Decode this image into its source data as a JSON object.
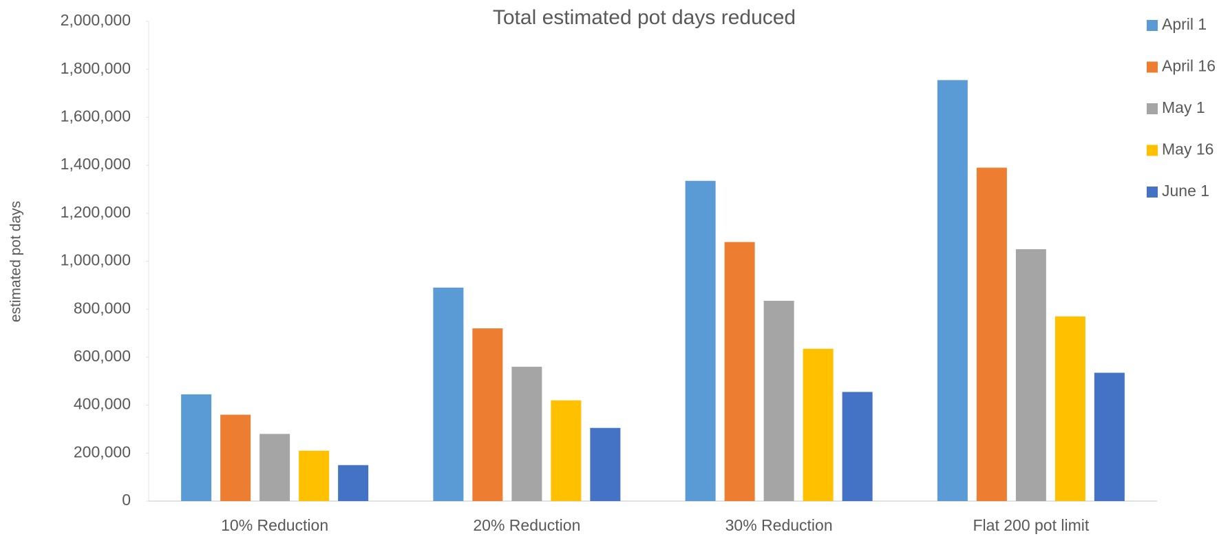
{
  "chart_data": {
    "type": "bar",
    "title": "Total estimated pot days reduced",
    "y_label": "estimated pot days",
    "categories": [
      "10% Reduction",
      "20% Reduction",
      "30% Reduction",
      "Flat 200 pot limit"
    ],
    "series": [
      {
        "name": "April 1",
        "color": "#5b9bd5",
        "values": [
          445000,
          890000,
          1335000,
          1755000
        ]
      },
      {
        "name": "April 16",
        "color": "#ed7d31",
        "values": [
          360000,
          720000,
          1080000,
          1390000
        ]
      },
      {
        "name": "May 1",
        "color": "#a5a5a5",
        "values": [
          280000,
          560000,
          835000,
          1050000
        ]
      },
      {
        "name": "May 16",
        "color": "#ffc000",
        "values": [
          210000,
          420000,
          635000,
          770000
        ]
      },
      {
        "name": "June 1",
        "color": "#4472c4",
        "values": [
          150000,
          305000,
          455000,
          535000
        ]
      }
    ],
    "ylim": [
      0,
      2000000
    ],
    "yticks": [
      0,
      {
        "value": 200000,
        "label": "200,000"
      },
      {
        "value": 400000,
        "label": "400,000"
      },
      {
        "value": 600000,
        "label": "600,000"
      },
      {
        "value": 800000,
        "label": "800,000"
      },
      {
        "value": 1000000,
        "label": "1,000,000"
      },
      {
        "value": 1200000,
        "label": "1,200,000"
      },
      {
        "value": 1400000,
        "label": "1,400,000"
      },
      {
        "value": 1600000,
        "label": "1,600,000"
      },
      {
        "value": 1800000,
        "label": "1,800,000"
      },
      {
        "value": 2000000,
        "label": "2,000,000"
      }
    ],
    "grid": false,
    "legend": "right"
  }
}
